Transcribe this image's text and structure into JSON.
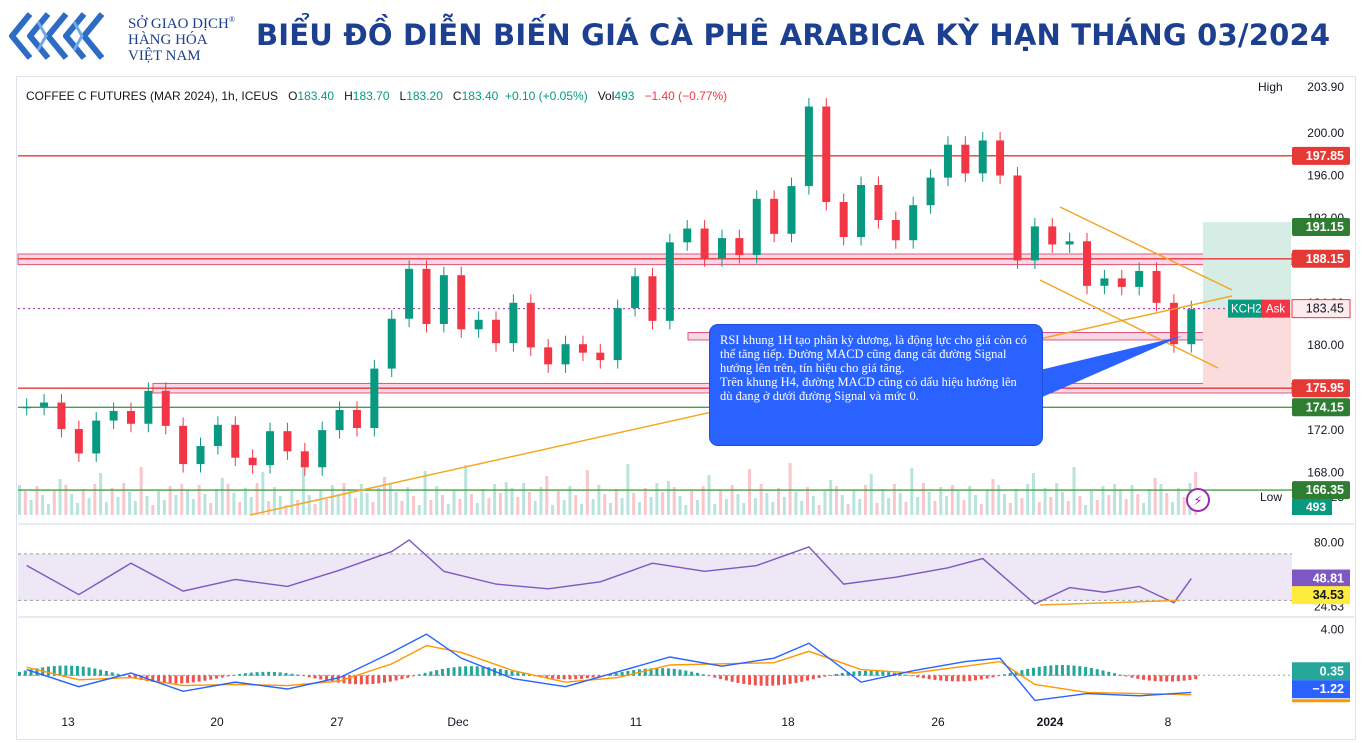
{
  "header": {
    "logo_line1": "SỞ GIAO DỊCH",
    "logo_line2": "HÀNG HÓA",
    "logo_line3": "VIỆT NAM",
    "logo_mark": "®",
    "title": "BIỂU ĐỒ DIỄN BIẾN GIÁ CÀ PHÊ ARABICA KỲ HẠN THÁNG 03/2024"
  },
  "legend": {
    "symbol": "COFFEE C FUTURES (MAR 2024), 1h, ICEUS",
    "open_label": "O",
    "open": "183.40",
    "high_label": "H",
    "high": "183.70",
    "low_label": "L",
    "low": "183.20",
    "close_label": "C",
    "close": "183.40",
    "change": "+0.10 (+0.05%)",
    "vol_label": "Vol",
    "vol": "493",
    "vol_change": "−1.40 (−0.77%)"
  },
  "annotation": {
    "p1": "RSI khung 1H tạo phân kỳ dương, là động lực cho giá còn có thể tăng tiếp. Đường MACD cũng đang cắt đường Signal hướng lên trên, tín hiệu cho giá tăng.",
    "p2": "Trên khung H4, đường MACD cũng có dấu hiệu hướng lên dù đang ở dưới đường Signal và mức 0."
  },
  "colors": {
    "up": "#089981",
    "down": "#f23645",
    "title": "#1d3f8f",
    "orange": "#f5a623",
    "red_line": "#e53935",
    "green_line": "#43a047",
    "rsi": "#7e57c2",
    "macd": "#2962ff",
    "signal": "#ff9800"
  },
  "chart_data": {
    "type": "candlestick",
    "title": "COFFEE C FUTURES (MAR 2024), 1h, ICEUS",
    "x_ticks": [
      "13",
      "20",
      "27",
      "Dec",
      "11",
      "18",
      "26",
      "2024",
      "8"
    ],
    "price_axis": {
      "ylim": [
        164,
        205
      ],
      "ticks": [
        "200.00",
        "196.00",
        "192.00",
        "184.00",
        "180.00",
        "176.00",
        "172.00",
        "168.00"
      ],
      "high_label": "High",
      "high_value": "203.90",
      "low_label": "Low",
      "low_value": "165.25"
    },
    "key_levels": [
      {
        "label": "197.85",
        "value": 197.85,
        "kind": "resistance"
      },
      {
        "label": "191.15",
        "value": 191.15,
        "kind": "target"
      },
      {
        "label": "188.15",
        "value": 188.15,
        "kind": "resistance-zone"
      },
      {
        "label": "175.95",
        "value": 175.95,
        "kind": "support-zone"
      },
      {
        "label": "174.15",
        "value": 174.15,
        "kind": "support"
      },
      {
        "label": "166.35",
        "value": 166.35,
        "kind": "support"
      }
    ],
    "current": {
      "symbol": "KCH24",
      "side": "Ask",
      "value": "183.45",
      "volume": "493"
    },
    "price_series": [
      {
        "x": 0,
        "y": 174.2
      },
      {
        "x": 1,
        "y": 174.6
      },
      {
        "x": 2,
        "y": 172.1
      },
      {
        "x": 3,
        "y": 169.8
      },
      {
        "x": 4,
        "y": 172.9
      },
      {
        "x": 5,
        "y": 173.8
      },
      {
        "x": 6,
        "y": 172.6
      },
      {
        "x": 7,
        "y": 175.7
      },
      {
        "x": 8,
        "y": 172.4
      },
      {
        "x": 9,
        "y": 168.8
      },
      {
        "x": 10,
        "y": 170.5
      },
      {
        "x": 11,
        "y": 172.5
      },
      {
        "x": 12,
        "y": 169.4
      },
      {
        "x": 13,
        "y": 168.7
      },
      {
        "x": 14,
        "y": 171.9
      },
      {
        "x": 15,
        "y": 170.0
      },
      {
        "x": 16,
        "y": 168.5
      },
      {
        "x": 17,
        "y": 172.0
      },
      {
        "x": 18,
        "y": 173.9
      },
      {
        "x": 19,
        "y": 172.2
      },
      {
        "x": 20,
        "y": 177.8
      },
      {
        "x": 21,
        "y": 182.5
      },
      {
        "x": 22,
        "y": 187.2
      },
      {
        "x": 23,
        "y": 182.0
      },
      {
        "x": 24,
        "y": 186.6
      },
      {
        "x": 25,
        "y": 181.5
      },
      {
        "x": 26,
        "y": 182.4
      },
      {
        "x": 27,
        "y": 180.2
      },
      {
        "x": 28,
        "y": 184.0
      },
      {
        "x": 29,
        "y": 179.8
      },
      {
        "x": 30,
        "y": 178.2
      },
      {
        "x": 31,
        "y": 180.1
      },
      {
        "x": 32,
        "y": 179.3
      },
      {
        "x": 33,
        "y": 178.6
      },
      {
        "x": 34,
        "y": 183.5
      },
      {
        "x": 35,
        "y": 186.5
      },
      {
        "x": 36,
        "y": 182.3
      },
      {
        "x": 37,
        "y": 189.7
      },
      {
        "x": 38,
        "y": 191.0
      },
      {
        "x": 39,
        "y": 188.2
      },
      {
        "x": 40,
        "y": 190.1
      },
      {
        "x": 41,
        "y": 188.5
      },
      {
        "x": 42,
        "y": 193.8
      },
      {
        "x": 43,
        "y": 190.5
      },
      {
        "x": 44,
        "y": 195.0
      },
      {
        "x": 45,
        "y": 202.5
      },
      {
        "x": 46,
        "y": 193.5
      },
      {
        "x": 47,
        "y": 190.2
      },
      {
        "x": 48,
        "y": 195.1
      },
      {
        "x": 49,
        "y": 191.8
      },
      {
        "x": 50,
        "y": 189.9
      },
      {
        "x": 51,
        "y": 193.2
      },
      {
        "x": 52,
        "y": 195.8
      },
      {
        "x": 53,
        "y": 198.9
      },
      {
        "x": 54,
        "y": 196.2
      },
      {
        "x": 55,
        "y": 199.3
      },
      {
        "x": 56,
        "y": 196.0
      },
      {
        "x": 57,
        "y": 188.0
      },
      {
        "x": 58,
        "y": 191.2
      },
      {
        "x": 59,
        "y": 189.5
      },
      {
        "x": 60,
        "y": 189.8
      },
      {
        "x": 61,
        "y": 185.6
      },
      {
        "x": 62,
        "y": 186.3
      },
      {
        "x": 63,
        "y": 185.5
      },
      {
        "x": 64,
        "y": 187.0
      },
      {
        "x": 65,
        "y": 184.0
      },
      {
        "x": 66,
        "y": 180.1
      },
      {
        "x": 67,
        "y": 183.4
      }
    ],
    "rsi": {
      "ticks": [
        "80.00",
        "50.02",
        "24.63"
      ],
      "value": "48.81",
      "signal_value": "34.53",
      "series": [
        {
          "x": 0,
          "y": 60
        },
        {
          "x": 3,
          "y": 35
        },
        {
          "x": 6,
          "y": 62
        },
        {
          "x": 9,
          "y": 38
        },
        {
          "x": 12,
          "y": 48
        },
        {
          "x": 15,
          "y": 42
        },
        {
          "x": 18,
          "y": 56
        },
        {
          "x": 21,
          "y": 72
        },
        {
          "x": 22,
          "y": 82
        },
        {
          "x": 24,
          "y": 55
        },
        {
          "x": 27,
          "y": 44
        },
        {
          "x": 30,
          "y": 40
        },
        {
          "x": 33,
          "y": 46
        },
        {
          "x": 36,
          "y": 62
        },
        {
          "x": 39,
          "y": 55
        },
        {
          "x": 42,
          "y": 60
        },
        {
          "x": 45,
          "y": 76
        },
        {
          "x": 47,
          "y": 44
        },
        {
          "x": 50,
          "y": 50
        },
        {
          "x": 53,
          "y": 58
        },
        {
          "x": 55,
          "y": 66
        },
        {
          "x": 57,
          "y": 40
        },
        {
          "x": 58,
          "y": 27
        },
        {
          "x": 60,
          "y": 41
        },
        {
          "x": 62,
          "y": 37
        },
        {
          "x": 64,
          "y": 42
        },
        {
          "x": 66,
          "y": 28
        },
        {
          "x": 67,
          "y": 48.8
        }
      ]
    },
    "macd": {
      "ticks": [
        "4.00"
      ],
      "macd_value": "0.35",
      "signal_value": "-1.22",
      "macd_series": [
        {
          "x": 0,
          "y": 0.5
        },
        {
          "x": 3,
          "y": -1.0
        },
        {
          "x": 6,
          "y": 0.2
        },
        {
          "x": 9,
          "y": -1.4
        },
        {
          "x": 12,
          "y": -0.6
        },
        {
          "x": 15,
          "y": -1.2
        },
        {
          "x": 18,
          "y": -0.2
        },
        {
          "x": 21,
          "y": 2.0
        },
        {
          "x": 23,
          "y": 3.6
        },
        {
          "x": 25,
          "y": 1.5
        },
        {
          "x": 28,
          "y": -0.3
        },
        {
          "x": 31,
          "y": -1.0
        },
        {
          "x": 34,
          "y": 0.3
        },
        {
          "x": 37,
          "y": 1.6
        },
        {
          "x": 40,
          "y": 0.8
        },
        {
          "x": 43,
          "y": 1.5
        },
        {
          "x": 45,
          "y": 2.8
        },
        {
          "x": 48,
          "y": -0.6
        },
        {
          "x": 51,
          "y": 0.4
        },
        {
          "x": 54,
          "y": 1.2
        },
        {
          "x": 56,
          "y": 1.5
        },
        {
          "x": 58,
          "y": -2.2
        },
        {
          "x": 61,
          "y": -1.6
        },
        {
          "x": 64,
          "y": -1.8
        },
        {
          "x": 67,
          "y": -1.5
        }
      ],
      "signal_series": [
        {
          "x": 0,
          "y": 0.7
        },
        {
          "x": 3,
          "y": -0.4
        },
        {
          "x": 6,
          "y": -0.2
        },
        {
          "x": 9,
          "y": -0.9
        },
        {
          "x": 12,
          "y": -0.8
        },
        {
          "x": 15,
          "y": -0.9
        },
        {
          "x": 18,
          "y": -0.5
        },
        {
          "x": 21,
          "y": 1.0
        },
        {
          "x": 23,
          "y": 2.6
        },
        {
          "x": 25,
          "y": 2.0
        },
        {
          "x": 28,
          "y": 0.4
        },
        {
          "x": 31,
          "y": -0.6
        },
        {
          "x": 34,
          "y": -0.2
        },
        {
          "x": 37,
          "y": 0.9
        },
        {
          "x": 40,
          "y": 1.0
        },
        {
          "x": 43,
          "y": 1.1
        },
        {
          "x": 45,
          "y": 2.1
        },
        {
          "x": 48,
          "y": 0.5
        },
        {
          "x": 51,
          "y": 0.2
        },
        {
          "x": 54,
          "y": 0.8
        },
        {
          "x": 56,
          "y": 1.2
        },
        {
          "x": 58,
          "y": -0.8
        },
        {
          "x": 61,
          "y": -1.5
        },
        {
          "x": 64,
          "y": -1.6
        },
        {
          "x": 67,
          "y": -1.7
        }
      ]
    }
  }
}
